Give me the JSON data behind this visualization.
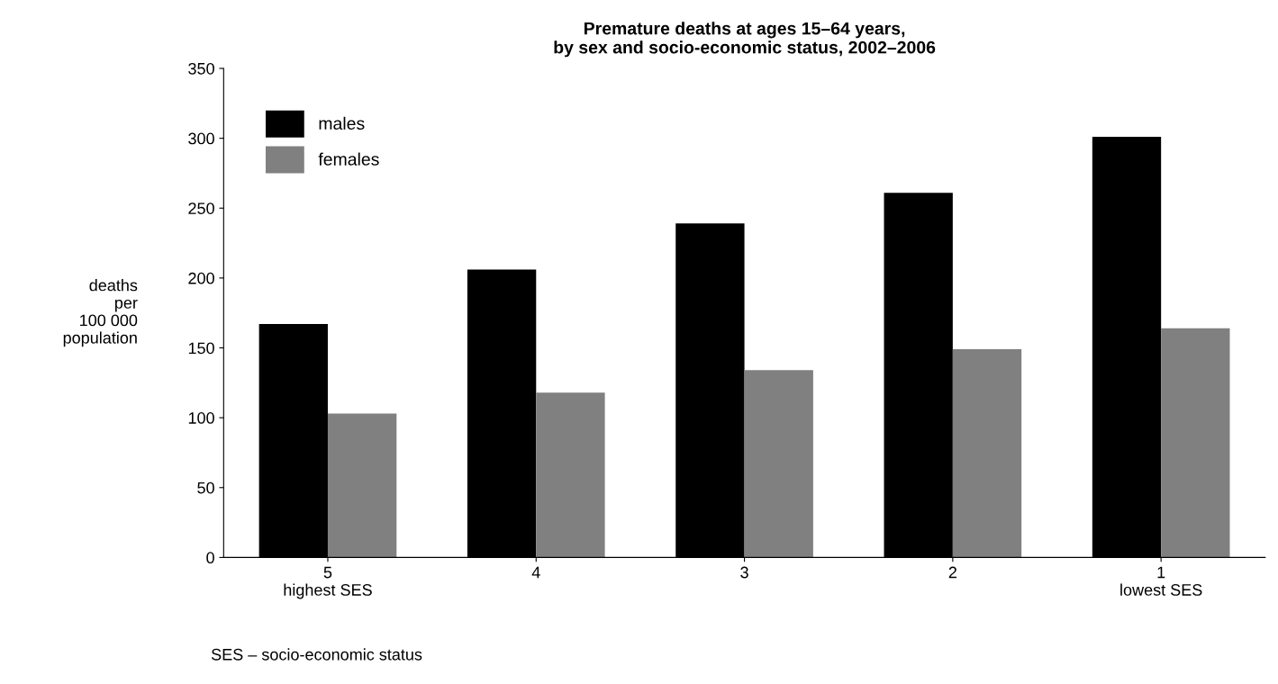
{
  "chart_data": {
    "type": "bar",
    "title": "Premature deaths at ages 15–64 years,\nby sex and socio-economic status, 2002–2006",
    "ylabel": "deaths\nper\n100 000\npopulation",
    "categories": [
      "5\nhighest SES",
      "4",
      "3",
      "2",
      "1\nlowest SES"
    ],
    "series": [
      {
        "name": "males",
        "color": "#000000",
        "values": [
          167,
          206,
          239,
          261,
          301
        ]
      },
      {
        "name": "females",
        "color": "#808080",
        "values": [
          103,
          118,
          134,
          149,
          164
        ]
      }
    ],
    "ylim": [
      0,
      350
    ],
    "yticks": [
      0,
      50,
      100,
      150,
      200,
      250,
      300,
      350
    ],
    "grid": false,
    "legend": "top left",
    "annotations": [
      "SES – socio-economic status"
    ]
  }
}
